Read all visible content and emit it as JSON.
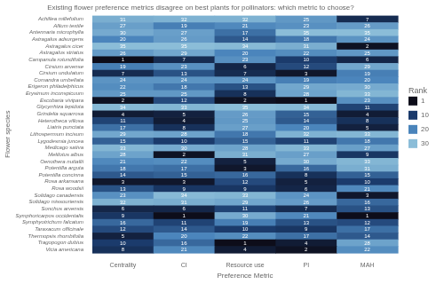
{
  "chart_data": {
    "type": "heatmap",
    "title": "Existing flower preference metrics disagree on best plants for pollinators: which metric to choose?",
    "xlabel": "Preference Metric",
    "ylabel": "Flower species",
    "x_categories": [
      "Centrality",
      "CI",
      "Resource use",
      "PI",
      "MAH"
    ],
    "y_categories": [
      "Achillea millefolium",
      "Allium textile",
      "Antennaria microphylla",
      "Astragalus adsurgens",
      "Astragalus cicer",
      "Astragalus striatus",
      "Campanula rotundifolia",
      "Cirsium arvense",
      "Cirsium undulatum",
      "Comandra umbellata",
      "Erigeron philadelphicus",
      "Erysimum inconspicuum",
      "Escobaria vivipara",
      "Glycyrrhiza lepidota",
      "Grindelia squarrosa",
      "Heterotheca villosa",
      "Liatris punctata",
      "Lithospermum incisum",
      "Lygodesmia juncea",
      "Medicago sativa",
      "Melilotus albus",
      "Oenothera nuttallii",
      "Potentilla arguta",
      "Potentilla concinna",
      "Rosa arkansana",
      "Rosa woodsii",
      "Solidago canadensis",
      "Solidago missouriensis",
      "Sonchus arvensis",
      "Symphoricarpos occidentalis",
      "Symphyotrichum falcatum",
      "Taraxacum officinale",
      "Thermopsis rhombifolia",
      "Tragopogon dubius",
      "Vicia americana"
    ],
    "values": [
      [
        31,
        32,
        32,
        25,
        7
      ],
      [
        27,
        19,
        21,
        23,
        26
      ],
      [
        30,
        27,
        17,
        35,
        35
      ],
      [
        20,
        26,
        14,
        18,
        24
      ],
      [
        35,
        35,
        34,
        31,
        2
      ],
      [
        26,
        29,
        20,
        22,
        25
      ],
      [
        1,
        7,
        23,
        10,
        6
      ],
      [
        19,
        23,
        6,
        12,
        29
      ],
      [
        7,
        13,
        7,
        3,
        19
      ],
      [
        24,
        24,
        24,
        19,
        20
      ],
      [
        22,
        18,
        13,
        29,
        30
      ],
      [
        25,
        25,
        8,
        28,
        33
      ],
      [
        2,
        12,
        2,
        1,
        23
      ],
      [
        34,
        33,
        35,
        34,
        11
      ],
      [
        4,
        5,
        26,
        15,
        4
      ],
      [
        11,
        4,
        25,
        14,
        8
      ],
      [
        17,
        8,
        27,
        20,
        5
      ],
      [
        29,
        28,
        18,
        32,
        33
      ],
      [
        15,
        10,
        15,
        11,
        18
      ],
      [
        33,
        30,
        28,
        33,
        27
      ],
      [
        28,
        2,
        31,
        27,
        9
      ],
      [
        21,
        22,
        5,
        30,
        33
      ],
      [
        18,
        17,
        3,
        16,
        31
      ],
      [
        14,
        15,
        16,
        8,
        15
      ],
      [
        3,
        3,
        12,
        5,
        10
      ],
      [
        13,
        9,
        9,
        6,
        21
      ],
      [
        23,
        34,
        33,
        24,
        3
      ],
      [
        32,
        31,
        29,
        26,
        16
      ],
      [
        6,
        6,
        11,
        7,
        13
      ],
      [
        9,
        1,
        30,
        21,
        1
      ],
      [
        16,
        11,
        19,
        13,
        12
      ],
      [
        12,
        14,
        10,
        9,
        17
      ],
      [
        5,
        20,
        22,
        17,
        14
      ],
      [
        10,
        16,
        1,
        4,
        28
      ],
      [
        8,
        21,
        4,
        2,
        22
      ]
    ],
    "color_range": [
      1,
      35
    ],
    "colormap": {
      "nodes": [
        0.0,
        0.26,
        0.55,
        1.0
      ],
      "colors": [
        "#0d0d1a",
        "#1a3a6b",
        "#4a84bb",
        "#8bbdd8"
      ]
    },
    "data_labels": true,
    "grid": false,
    "legend": "right",
    "legend_title": "Rank",
    "legend_items": [
      {
        "label": "1",
        "color": "#0d0d1a"
      },
      {
        "label": "10",
        "color": "#1a3a6b"
      },
      {
        "label": "20",
        "color": "#4a84bb"
      },
      {
        "label": "30",
        "color": "#8bbdd8"
      }
    ]
  }
}
